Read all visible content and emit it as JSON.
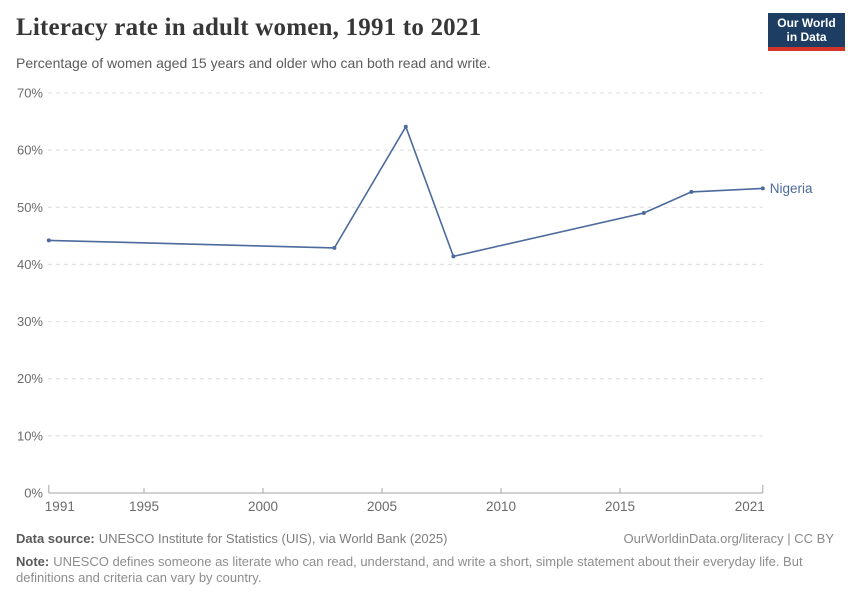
{
  "header": {
    "title": "Literacy rate in adult women, 1991 to 2021",
    "subtitle": "Percentage of women aged 15 years and older who can both read and write.",
    "logo": {
      "line1": "Our World",
      "line2": "in Data",
      "bg_color": "#1d3d63",
      "accent_color": "#d0342b",
      "text_color": "#ffffff"
    }
  },
  "chart_data": {
    "type": "line",
    "title": "Literacy rate in adult women, 1991 to 2021",
    "series": [
      {
        "name": "Nigeria",
        "color": "#4c6a9c",
        "x": [
          1991,
          2003,
          2006,
          2008,
          2016,
          2018,
          2021
        ],
        "values": [
          44.2,
          42.9,
          64.1,
          41.4,
          49.0,
          52.7,
          53.3
        ]
      }
    ],
    "xlabel": "",
    "ylabel": "",
    "xlim": [
      1991,
      2021
    ],
    "ylim": [
      0,
      70
    ],
    "x_ticks": [
      1991,
      1995,
      2000,
      2005,
      2010,
      2015,
      2021
    ],
    "x_tick_labels": [
      "1991",
      "1995",
      "2000",
      "2005",
      "2010",
      "2015",
      "2021"
    ],
    "y_ticks": [
      0,
      10,
      20,
      30,
      40,
      50,
      60,
      70
    ],
    "y_tick_labels": [
      "0%",
      "10%",
      "20%",
      "30%",
      "40%",
      "50%",
      "60%",
      "70%"
    ],
    "grid": "horizontal-dashed",
    "legend_position": "end-of-line-label",
    "colors": {
      "gridline": "#dcdcdc",
      "axis_line": "#a6a6a6",
      "tick_label": "#6b6b6b"
    }
  },
  "footer": {
    "data_source_label": "Data source:",
    "data_source_text": "UNESCO Institute for Statistics (UIS), via World Bank (2025)",
    "link_text": "OurWorldinData.org/literacy | CC BY",
    "note_label": "Note:",
    "note_text": "UNESCO defines someone as literate who can read, understand, and write a short, simple statement about their everyday life. But definitions and criteria can vary by country."
  }
}
